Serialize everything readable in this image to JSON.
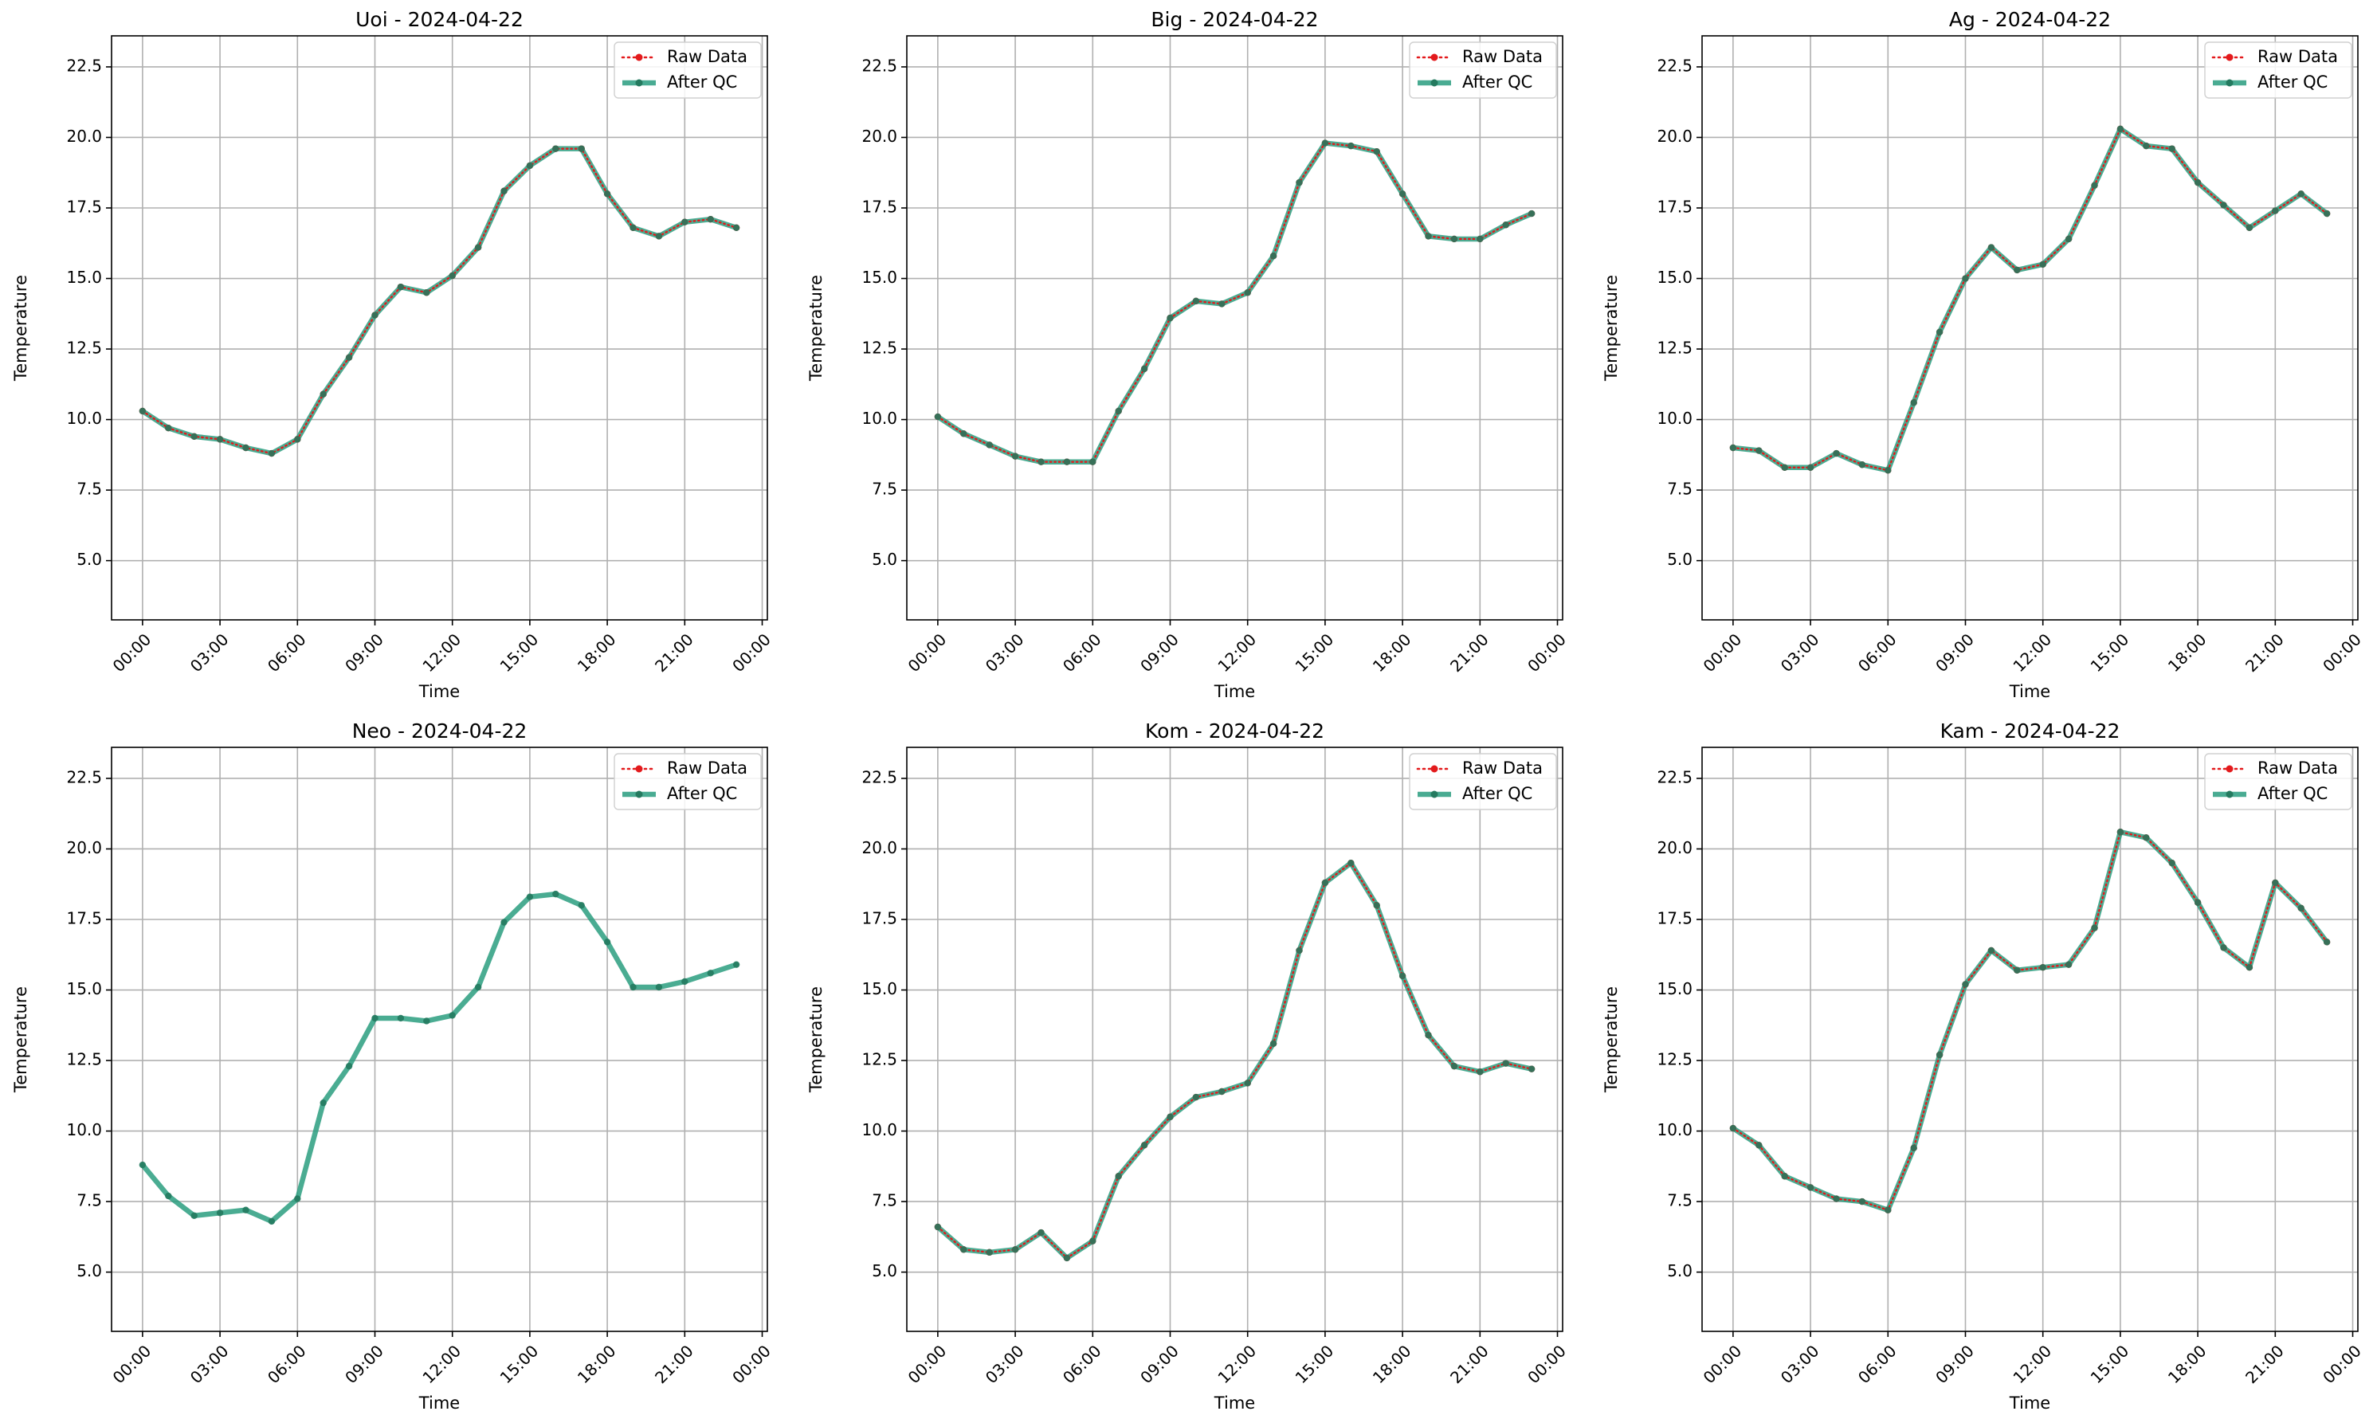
{
  "chart_data": [
    {
      "type": "line",
      "title": "Uoi - 2024-04-22",
      "xlabel": "Time",
      "ylabel": "Temperature",
      "xticks": [
        "00:00",
        "03:00",
        "06:00",
        "09:00",
        "12:00",
        "15:00",
        "18:00",
        "21:00",
        "00:00"
      ],
      "yticks": [
        "5.0",
        "7.5",
        "10.0",
        "12.5",
        "15.0",
        "17.5",
        "20.0",
        "22.5"
      ],
      "ylim": [
        2.9,
        23.6
      ],
      "xlim_hours": [
        -1.2,
        24.2
      ],
      "grid": true,
      "legend": "top-right",
      "x_hours": [
        0,
        1,
        2,
        3,
        4,
        5,
        6,
        7,
        8,
        9,
        10,
        11,
        12,
        13,
        14,
        15,
        16,
        17,
        18,
        19,
        20,
        21,
        22,
        23
      ],
      "series": [
        {
          "name": "Raw Data",
          "values": [
            10.3,
            9.7,
            9.4,
            9.3,
            9.0,
            8.8,
            9.3,
            10.9,
            12.2,
            13.7,
            14.7,
            14.5,
            15.1,
            16.1,
            18.1,
            19.0,
            19.6,
            19.6,
            18.0,
            16.8,
            16.5,
            17.0,
            17.1,
            16.8
          ]
        },
        {
          "name": "After QC",
          "values": [
            10.3,
            9.7,
            9.4,
            9.3,
            9.0,
            8.8,
            9.3,
            10.9,
            12.2,
            13.7,
            14.7,
            14.5,
            15.1,
            16.1,
            18.1,
            19.0,
            19.6,
            19.6,
            18.0,
            16.8,
            16.5,
            17.0,
            17.1,
            16.8
          ]
        }
      ]
    },
    {
      "type": "line",
      "title": "Big - 2024-04-22",
      "xlabel": "Time",
      "ylabel": "Temperature",
      "xticks": [
        "00:00",
        "03:00",
        "06:00",
        "09:00",
        "12:00",
        "15:00",
        "18:00",
        "21:00",
        "00:00"
      ],
      "yticks": [
        "5.0",
        "7.5",
        "10.0",
        "12.5",
        "15.0",
        "17.5",
        "20.0",
        "22.5"
      ],
      "ylim": [
        2.9,
        23.6
      ],
      "xlim_hours": [
        -1.2,
        24.2
      ],
      "grid": true,
      "legend": "top-right",
      "x_hours": [
        0,
        1,
        2,
        3,
        4,
        5,
        6,
        7,
        8,
        9,
        10,
        11,
        12,
        13,
        14,
        15,
        16,
        17,
        18,
        19,
        20,
        21,
        22,
        23
      ],
      "series": [
        {
          "name": "Raw Data",
          "values": [
            10.1,
            9.5,
            9.1,
            8.7,
            8.5,
            8.5,
            8.5,
            10.3,
            11.8,
            13.6,
            14.2,
            14.1,
            14.5,
            15.8,
            18.4,
            19.8,
            19.7,
            19.5,
            18.0,
            16.5,
            16.4,
            16.4,
            16.9,
            17.3
          ]
        },
        {
          "name": "After QC",
          "values": [
            10.1,
            9.5,
            9.1,
            8.7,
            8.5,
            8.5,
            8.5,
            10.3,
            11.8,
            13.6,
            14.2,
            14.1,
            14.5,
            15.8,
            18.4,
            19.8,
            19.7,
            19.5,
            18.0,
            16.5,
            16.4,
            16.4,
            16.9,
            17.3
          ]
        }
      ]
    },
    {
      "type": "line",
      "title": "Ag - 2024-04-22",
      "xlabel": "Time",
      "ylabel": "Temperature",
      "xticks": [
        "00:00",
        "03:00",
        "06:00",
        "09:00",
        "12:00",
        "15:00",
        "18:00",
        "21:00",
        "00:00"
      ],
      "yticks": [
        "5.0",
        "7.5",
        "10.0",
        "12.5",
        "15.0",
        "17.5",
        "20.0",
        "22.5"
      ],
      "ylim": [
        2.9,
        23.6
      ],
      "xlim_hours": [
        -1.2,
        24.2
      ],
      "grid": true,
      "legend": "top-right",
      "x_hours": [
        0,
        1,
        2,
        3,
        4,
        5,
        6,
        7,
        8,
        9,
        10,
        11,
        12,
        13,
        14,
        15,
        16,
        17,
        18,
        19,
        20,
        21,
        22,
        23
      ],
      "series": [
        {
          "name": "Raw Data",
          "values": [
            9.0,
            8.9,
            8.3,
            8.3,
            8.8,
            8.4,
            8.2,
            10.6,
            13.1,
            15.0,
            16.1,
            15.3,
            15.5,
            16.4,
            18.3,
            20.3,
            19.7,
            19.6,
            18.4,
            17.6,
            16.8,
            17.4,
            18.0,
            17.3
          ]
        },
        {
          "name": "After QC",
          "values": [
            9.0,
            8.9,
            8.3,
            8.3,
            8.8,
            8.4,
            8.2,
            10.6,
            13.1,
            15.0,
            16.1,
            15.3,
            15.5,
            16.4,
            18.3,
            20.3,
            19.7,
            19.6,
            18.4,
            17.6,
            16.8,
            17.4,
            18.0,
            17.3
          ]
        }
      ]
    },
    {
      "type": "line",
      "title": "Neo - 2024-04-22",
      "xlabel": "Time",
      "ylabel": "Temperature",
      "xticks": [
        "00:00",
        "03:00",
        "06:00",
        "09:00",
        "12:00",
        "15:00",
        "18:00",
        "21:00",
        "00:00"
      ],
      "yticks": [
        "5.0",
        "7.5",
        "10.0",
        "12.5",
        "15.0",
        "17.5",
        "20.0",
        "22.5"
      ],
      "ylim": [
        2.9,
        23.6
      ],
      "xlim_hours": [
        -1.2,
        24.2
      ],
      "grid": true,
      "legend": "top-right",
      "x_hours": [
        0,
        1,
        2,
        3,
        4,
        5,
        6,
        7,
        8,
        9,
        10,
        11,
        12,
        13,
        14,
        15,
        16,
        17,
        18,
        19,
        20,
        21,
        22,
        23
      ],
      "series": [
        {
          "name": "Raw Data",
          "values": []
        },
        {
          "name": "After QC",
          "values": [
            8.8,
            7.7,
            7.0,
            7.1,
            7.2,
            6.8,
            7.6,
            11.0,
            12.3,
            14.0,
            14.0,
            13.9,
            14.1,
            15.1,
            17.4,
            18.3,
            18.4,
            18.0,
            16.7,
            15.1,
            15.1,
            15.3,
            15.6,
            15.9
          ]
        }
      ]
    },
    {
      "type": "line",
      "title": "Kom - 2024-04-22",
      "xlabel": "Time",
      "ylabel": "Temperature",
      "xticks": [
        "00:00",
        "03:00",
        "06:00",
        "09:00",
        "12:00",
        "15:00",
        "18:00",
        "21:00",
        "00:00"
      ],
      "yticks": [
        "5.0",
        "7.5",
        "10.0",
        "12.5",
        "15.0",
        "17.5",
        "20.0",
        "22.5"
      ],
      "ylim": [
        2.9,
        23.6
      ],
      "xlim_hours": [
        -1.2,
        24.2
      ],
      "grid": true,
      "legend": "top-right",
      "x_hours": [
        0,
        1,
        2,
        3,
        4,
        5,
        6,
        7,
        8,
        9,
        10,
        11,
        12,
        13,
        14,
        15,
        16,
        17,
        18,
        19,
        20,
        21,
        22,
        23
      ],
      "series": [
        {
          "name": "Raw Data",
          "values": [
            6.6,
            5.8,
            5.7,
            5.8,
            6.4,
            5.5,
            6.1,
            8.4,
            9.5,
            10.5,
            11.2,
            11.4,
            11.7,
            13.1,
            16.4,
            18.8,
            19.5,
            18.0,
            15.5,
            13.4,
            12.3,
            12.1,
            12.4,
            12.2
          ]
        },
        {
          "name": "After QC",
          "values": [
            6.6,
            5.8,
            5.7,
            5.8,
            6.4,
            5.5,
            6.1,
            8.4,
            9.5,
            10.5,
            11.2,
            11.4,
            11.7,
            13.1,
            16.4,
            18.8,
            19.5,
            18.0,
            15.5,
            13.4,
            12.3,
            12.1,
            12.4,
            12.2
          ]
        }
      ]
    },
    {
      "type": "line",
      "title": "Kam - 2024-04-22",
      "xlabel": "Time",
      "ylabel": "Temperature",
      "xticks": [
        "00:00",
        "03:00",
        "06:00",
        "09:00",
        "12:00",
        "15:00",
        "18:00",
        "21:00",
        "00:00"
      ],
      "yticks": [
        "5.0",
        "7.5",
        "10.0",
        "12.5",
        "15.0",
        "17.5",
        "20.0",
        "22.5"
      ],
      "ylim": [
        2.9,
        23.6
      ],
      "xlim_hours": [
        -1.2,
        24.2
      ],
      "grid": true,
      "legend": "top-right",
      "x_hours": [
        0,
        1,
        2,
        3,
        4,
        5,
        6,
        7,
        8,
        9,
        10,
        11,
        12,
        13,
        14,
        15,
        16,
        17,
        18,
        19,
        20,
        21,
        22,
        23
      ],
      "series": [
        {
          "name": "Raw Data",
          "values": [
            10.1,
            9.5,
            8.4,
            8.0,
            7.6,
            7.5,
            7.2,
            9.4,
            12.7,
            15.2,
            16.4,
            15.7,
            15.8,
            15.9,
            17.2,
            20.6,
            20.4,
            19.5,
            18.1,
            16.5,
            15.8,
            18.8,
            17.9,
            16.7
          ]
        },
        {
          "name": "After QC",
          "values": [
            10.1,
            9.5,
            8.4,
            8.0,
            7.6,
            7.5,
            7.2,
            9.4,
            12.7,
            15.2,
            16.4,
            15.7,
            15.8,
            15.9,
            17.2,
            20.6,
            20.4,
            19.5,
            18.1,
            16.5,
            15.8,
            18.8,
            17.9,
            16.7
          ]
        }
      ]
    }
  ],
  "style": {
    "raw_color": "#e31a1c",
    "qc_color": "#2a9d7f",
    "qc_marker_color": "#247a5f",
    "grid_color": "#b0b0b0",
    "axis_color": "#000000"
  }
}
